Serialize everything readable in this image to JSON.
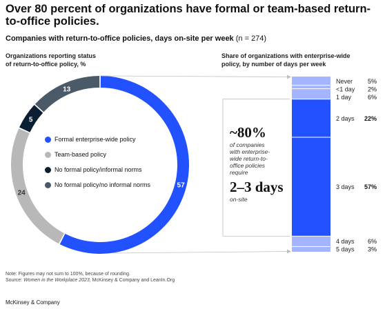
{
  "title": "Over 80 percent of organizations have formal or team-based return-to-office policies.",
  "subtitle": {
    "main": "Companies with return-to-office policies, days on-site per week",
    "sample": "(n = 274)"
  },
  "left_panel": {
    "label_line1": "Organizations reporting status",
    "label_line2": "of return-to-office policy, %"
  },
  "right_panel": {
    "label_line1": "Share of organizations with enterprise-wide",
    "label_line2": "policy, by number of days per week"
  },
  "callout": {
    "percent": "~80%",
    "desc_line1": "of companies",
    "desc_line2": "with enterprise-",
    "desc_line3": "wide return-to-",
    "desc_line4": "office policies",
    "desc_line5": "require",
    "days": "2–3 days",
    "onsite": "on-site"
  },
  "chart_data": [
    {
      "type": "pie",
      "variant": "donut",
      "unit": "%",
      "series": [
        {
          "name": "Formal enterprise-wide policy",
          "value": 57,
          "label": "57",
          "color": "#2251ff"
        },
        {
          "name": "Team-based policy",
          "value": 24,
          "label": "24",
          "color": "#b8b8b8"
        },
        {
          "name": "No formal policy/informal norms",
          "value": 5,
          "label": "5",
          "color": "#0b1f33"
        },
        {
          "name": "No formal policy/no informal norms",
          "value": 13,
          "label": "13",
          "color": "#4b5a68"
        }
      ]
    },
    {
      "type": "bar",
      "variant": "100% stacked",
      "unit": "%",
      "categories": [
        "Never",
        "<1 day",
        "1 day",
        "2 days",
        "3 days",
        "4 days",
        "5 days"
      ],
      "values": [
        5,
        2,
        6,
        22,
        57,
        6,
        3
      ],
      "value_labels": [
        "5%",
        "2%",
        "6%",
        "22%",
        "57%",
        "6%",
        "3%"
      ],
      "bold": [
        false,
        false,
        false,
        true,
        true,
        false,
        false
      ],
      "colors": {
        "dark": "#2251ff",
        "light": "#a4b4ff"
      },
      "highlighted": [
        "2 days",
        "3 days"
      ]
    }
  ],
  "footnote": {
    "note": "Note: Figures may not sum to 100%, because of rounding.",
    "source_prefix": "Source: ",
    "source_pub": "Women in the Workplace 2023",
    "source_suffix": ", McKinsey & Company and LeanIn.Org"
  },
  "brand": "McKinsey & Company"
}
